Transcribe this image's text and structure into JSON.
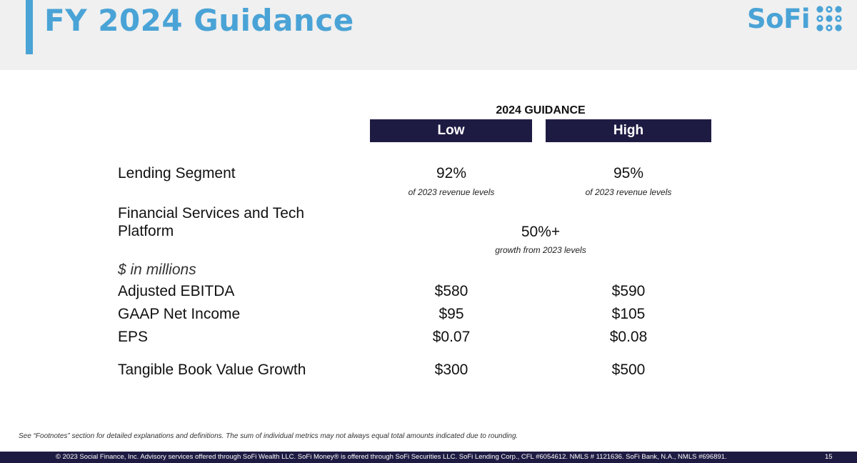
{
  "header": {
    "title": "FY 2024 Guidance",
    "logo_text": "SoFi",
    "accent_color": "#4aa3d6",
    "logo_icon": "dot-grid-icon"
  },
  "table": {
    "group_heading": "2024 GUIDANCE",
    "columns": [
      "Low",
      "High"
    ],
    "header_color": "#1e1b43",
    "lending": {
      "label": "Lending Segment",
      "low": "92%",
      "low_note": "of 2023 revenue levels",
      "high": "95%",
      "high_note": "of 2023 revenue levels"
    },
    "fs_tech": {
      "label_line1": "Financial Services and Tech",
      "label_line2": "Platform",
      "value": "50%+",
      "note": "growth from 2023 levels"
    },
    "units_label": "$ in millions",
    "rows": [
      {
        "label": "Adjusted EBITDA",
        "low": "$580",
        "high": "$590"
      },
      {
        "label": "GAAP Net Income",
        "low": "$95",
        "high": "$105"
      },
      {
        "label": "EPS",
        "low": "$0.07",
        "high": "$0.08"
      },
      {
        "label": "Tangible Book Value Growth",
        "low": "$300",
        "high": "$500"
      }
    ]
  },
  "footnote": "See “Footnotes” section for detailed explanations and definitions. The sum of individual metrics may not always equal total amounts indicated due to rounding.",
  "footer": {
    "copyright": "© 2023 Social Finance, Inc. Advisory services offered through SoFi Wealth LLC. SoFi Money® is offered through SoFi Securities LLC. SoFi Lending Corp., CFL #6054612. NMLS # 1121636. SoFi Bank, N.A., NMLS #696891.",
    "page_number": "15"
  }
}
